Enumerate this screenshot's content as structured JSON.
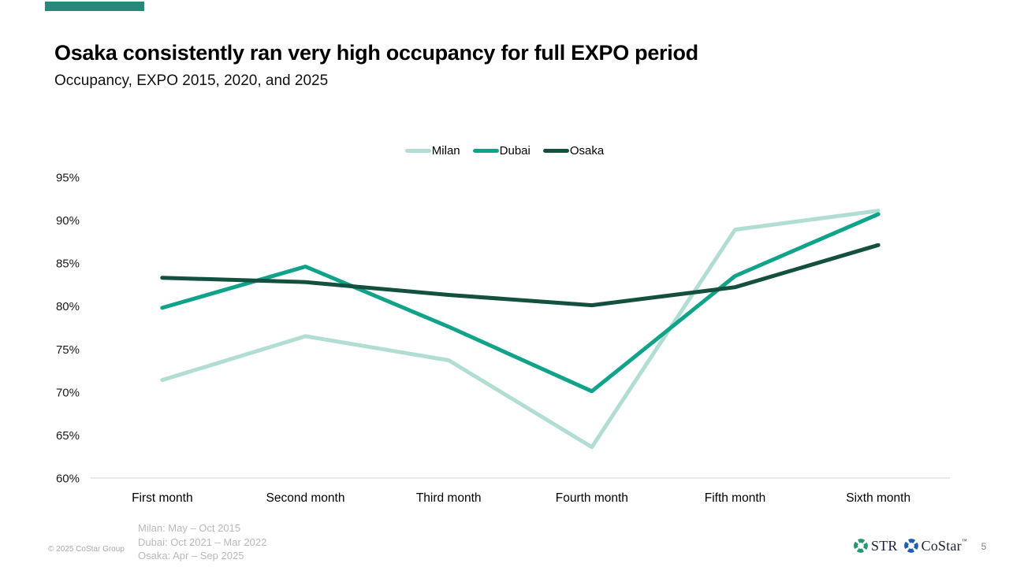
{
  "slide": {
    "title": "Osaka consistently ran very high occupancy for full EXPO period",
    "subtitle": "Occupancy, EXPO 2015, 2020, and 2025",
    "accent_bar_color": "#27897A",
    "footnotes": [
      "Milan: May – Oct 2015",
      "Dubai: Oct 2021 – Mar 2022",
      "Osaka: Apr – Sep 2025"
    ],
    "copyright": "© 2025 CoStar Group",
    "page_number": "5",
    "logos": {
      "str_label": "STR",
      "str_icon_color": "#2B9474",
      "costar_label": "CoStar",
      "costar_tm": "™",
      "costar_icon_color": "#1F5FAD"
    }
  },
  "chart_data": {
    "type": "line",
    "title": "",
    "categories": [
      "First month",
      "Second month",
      "Third month",
      "Fourth month",
      "Fifth month",
      "Sixth month"
    ],
    "series": [
      {
        "name": "Milan",
        "color": "#B2DDD4",
        "values": [
          71.4,
          76.5,
          73.7,
          63.6,
          88.9,
          91.1
        ]
      },
      {
        "name": "Dubai",
        "color": "#10A38A",
        "values": [
          79.8,
          84.6,
          77.6,
          70.1,
          83.5,
          90.7
        ]
      },
      {
        "name": "Osaka",
        "color": "#14503F",
        "values": [
          83.3,
          82.8,
          81.3,
          80.1,
          82.2,
          87.1
        ]
      }
    ],
    "y_ticks": [
      "95%",
      "90%",
      "85%",
      "80%",
      "75%",
      "70%",
      "65%",
      "60%"
    ],
    "y_tick_values": [
      95,
      90,
      85,
      80,
      75,
      70,
      65,
      60
    ],
    "ylim": [
      60,
      95
    ],
    "grid": false,
    "legend_position": "top",
    "axis_line_color": "#d9d9d9",
    "line_width": 5
  }
}
